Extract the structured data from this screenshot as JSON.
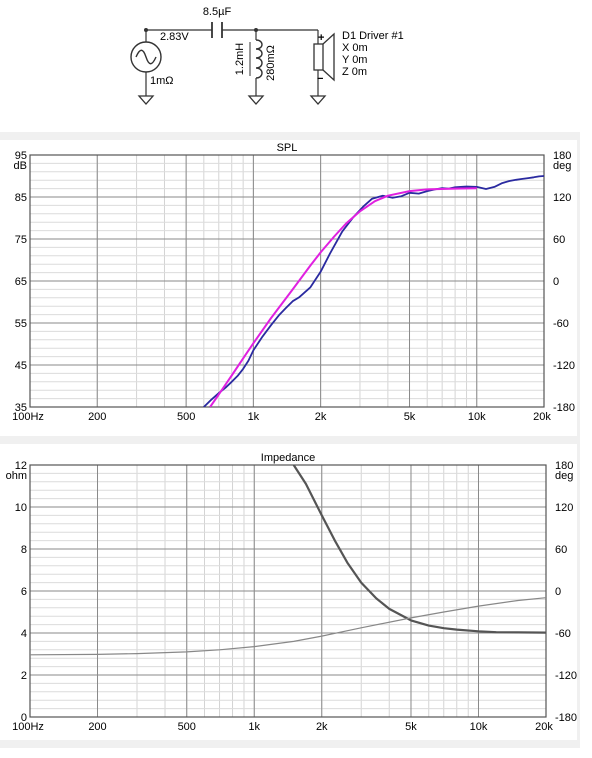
{
  "schematic": {
    "source_voltage": "2.83V",
    "source_resistance": "1mΩ",
    "capacitor": "8.5µF",
    "inductor": "1.2mH",
    "inductor_resistance": "280mΩ",
    "driver_name": "D1 Driver #1",
    "driver_x": "X 0m",
    "driver_y": "Y 0m",
    "driver_z": "Z 0m",
    "plus": "+",
    "minus": "−"
  },
  "chart_data": [
    {
      "type": "line",
      "title": "SPL",
      "ylabel": "dB",
      "y2label": "deg",
      "xscale": "log",
      "xlim": [
        100,
        20000
      ],
      "ylim": [
        35,
        95
      ],
      "y2lim": [
        -180,
        180
      ],
      "x_ticks": [
        {
          "v": 100,
          "label": "100Hz"
        },
        {
          "v": 200,
          "label": "200"
        },
        {
          "v": 500,
          "label": "500"
        },
        {
          "v": 1000,
          "label": "1k"
        },
        {
          "v": 2000,
          "label": "2k"
        },
        {
          "v": 5000,
          "label": "5k"
        },
        {
          "v": 10000,
          "label": "10k"
        },
        {
          "v": 20000,
          "label": "20k"
        }
      ],
      "y_ticks": [
        {
          "v": 95,
          "label": "95"
        },
        {
          "v": 85,
          "label": "85"
        },
        {
          "v": 75,
          "label": "75"
        },
        {
          "v": 65,
          "label": "65"
        },
        {
          "v": 55,
          "label": "55"
        },
        {
          "v": 45,
          "label": "45"
        },
        {
          "v": 35,
          "label": "35"
        }
      ],
      "y2_ticks": [
        {
          "v": 180,
          "label": "180"
        },
        {
          "v": 120,
          "label": "120"
        },
        {
          "v": 60,
          "label": "60"
        },
        {
          "v": 0,
          "label": "0"
        },
        {
          "v": -60,
          "label": "-60"
        },
        {
          "v": -120,
          "label": "-120"
        },
        {
          "v": -180,
          "label": "-180"
        }
      ],
      "series": [
        {
          "color": "#2a2aa0",
          "width": 1.8,
          "x": [
            600,
            650,
            700,
            750,
            800,
            850,
            900,
            950,
            1000,
            1100,
            1200,
            1300,
            1400,
            1500,
            1600,
            1800,
            2000,
            2200,
            2500,
            2800,
            3100,
            3400,
            3800,
            4200,
            4600,
            5000,
            5500,
            6000,
            6500,
            7000,
            7500,
            8000,
            9000,
            10000,
            11000,
            12000,
            13000,
            14000,
            15000,
            16000,
            17000,
            18000,
            19000,
            20000
          ],
          "values": [
            35,
            36.8,
            38.3,
            39.6,
            41,
            42.4,
            44.1,
            46,
            48.5,
            51.8,
            54.5,
            56.8,
            58.6,
            60.2,
            61.1,
            63.5,
            67.2,
            71.5,
            76.8,
            80.2,
            82.7,
            84.6,
            85.3,
            84.8,
            85.2,
            86,
            85.8,
            86.4,
            86.8,
            87.1,
            87,
            87.3,
            87.5,
            87.4,
            86.9,
            87.4,
            88.3,
            88.8,
            89.1,
            89.3,
            89.5,
            89.7,
            89.9,
            90
          ]
        },
        {
          "color": "#e020e0",
          "width": 2,
          "x": [
            640,
            700,
            800,
            900,
            1000,
            1200,
            1500,
            1800,
            2000,
            2300,
            2600,
            3000,
            3500,
            4000,
            5000,
            6000,
            8000,
            10000
          ],
          "values": [
            35,
            38,
            42.5,
            46.6,
            50.2,
            56.2,
            63,
            68.7,
            71.8,
            75.6,
            78.7,
            81.6,
            84,
            85.3,
            86.4,
            86.8,
            87,
            87.1
          ]
        }
      ]
    },
    {
      "type": "line",
      "title": "Impedance",
      "ylabel": "ohm",
      "y2label": "deg",
      "xscale": "log",
      "xlim": [
        100,
        20000
      ],
      "ylim": [
        0,
        12
      ],
      "y2lim": [
        -180,
        180
      ],
      "x_ticks": [
        {
          "v": 100,
          "label": "100Hz"
        },
        {
          "v": 200,
          "label": "200"
        },
        {
          "v": 500,
          "label": "500"
        },
        {
          "v": 1000,
          "label": "1k"
        },
        {
          "v": 2000,
          "label": "2k"
        },
        {
          "v": 5000,
          "label": "5k"
        },
        {
          "v": 10000,
          "label": "10k"
        },
        {
          "v": 20000,
          "label": "20k"
        }
      ],
      "y_ticks": [
        {
          "v": 12,
          "label": "12"
        },
        {
          "v": 10,
          "label": "10"
        },
        {
          "v": 8,
          "label": "8"
        },
        {
          "v": 6,
          "label": "6"
        },
        {
          "v": 4,
          "label": "4"
        },
        {
          "v": 2,
          "label": "2"
        },
        {
          "v": 0,
          "label": "0"
        }
      ],
      "y2_ticks": [
        {
          "v": 180,
          "label": "180"
        },
        {
          "v": 120,
          "label": "120"
        },
        {
          "v": 60,
          "label": "60"
        },
        {
          "v": 0,
          "label": "0"
        },
        {
          "v": -60,
          "label": "-60"
        },
        {
          "v": -120,
          "label": "-120"
        },
        {
          "v": -180,
          "label": "-180"
        }
      ],
      "series": [
        {
          "color": "#555555",
          "width": 2.2,
          "x": [
            1500,
            1700,
            2000,
            2300,
            2600,
            3000,
            3500,
            4000,
            5000,
            6000,
            7000,
            8000,
            10000,
            12000,
            15000,
            20000
          ],
          "values": [
            12,
            11.1,
            9.6,
            8.35,
            7.35,
            6.4,
            5.65,
            5.15,
            4.6,
            4.35,
            4.23,
            4.16,
            4.08,
            4.04,
            4.03,
            4.02
          ]
        },
        {
          "color": "#888888",
          "width": 1.2,
          "x": [
            100,
            200,
            300,
            500,
            700,
            1000,
            1500,
            2000,
            3000,
            5000,
            7000,
            10000,
            15000,
            20000
          ],
          "values": [
            2.96,
            2.98,
            3.02,
            3.1,
            3.2,
            3.35,
            3.6,
            3.85,
            4.25,
            4.72,
            5.0,
            5.28,
            5.55,
            5.68
          ]
        }
      ]
    }
  ]
}
